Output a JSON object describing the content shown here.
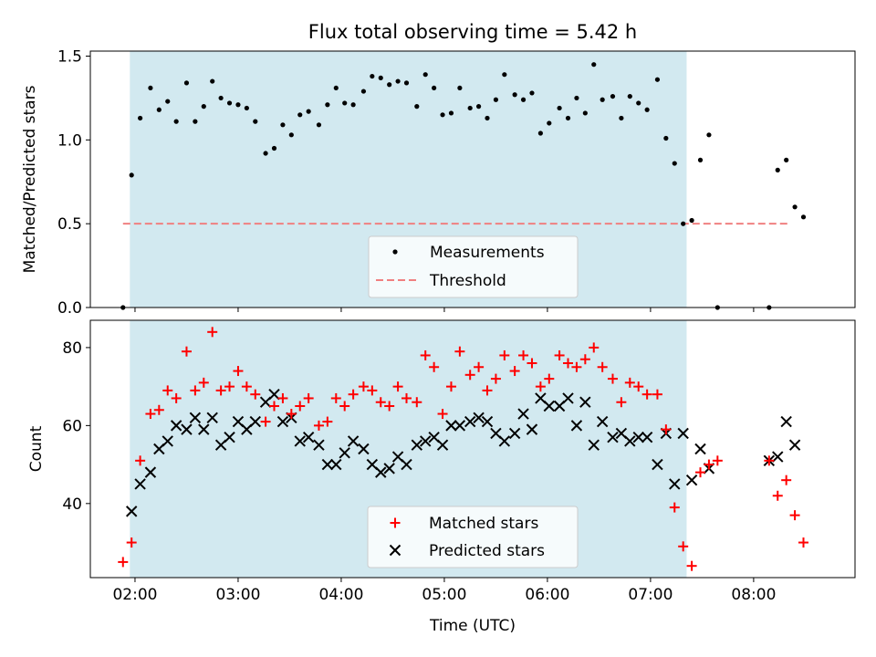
{
  "chart_data": [
    {
      "type": "scatter",
      "title": "Flux total observing time = 5.42 h",
      "xlabel": "",
      "ylabel": "Matched/Predicted stars",
      "xlim": [
        "01:34",
        "08:59"
      ],
      "ylim": [
        0,
        1.53
      ],
      "x_ticks": [
        "02:00",
        "03:00",
        "04:00",
        "05:00",
        "06:00",
        "07:00",
        "08:00"
      ],
      "y_ticks": [
        "0.0",
        "0.5",
        "1.0",
        "1.5"
      ],
      "observing_window": {
        "start": "01:57",
        "end": "07:21",
        "color": "#d2e9f0"
      },
      "threshold": {
        "name": "Threshold",
        "value": 0.5,
        "x_range": [
          "01:53",
          "08:20"
        ],
        "color": "#f08080"
      },
      "legend_position": "lower-center",
      "series": [
        {
          "name": "Measurements",
          "color": "#000000",
          "marker": "dot",
          "points": [
            [
              "01:53",
              0.0
            ],
            [
              "01:58",
              0.79
            ],
            [
              "02:03",
              1.13
            ],
            [
              "02:09",
              1.31
            ],
            [
              "02:14",
              1.18
            ],
            [
              "02:19",
              1.23
            ],
            [
              "02:24",
              1.11
            ],
            [
              "02:30",
              1.34
            ],
            [
              "02:35",
              1.11
            ],
            [
              "02:40",
              1.2
            ],
            [
              "02:45",
              1.35
            ],
            [
              "02:50",
              1.25
            ],
            [
              "02:55",
              1.22
            ],
            [
              "03:00",
              1.21
            ],
            [
              "03:05",
              1.19
            ],
            [
              "03:10",
              1.11
            ],
            [
              "03:16",
              0.92
            ],
            [
              "03:21",
              0.95
            ],
            [
              "03:26",
              1.09
            ],
            [
              "03:31",
              1.03
            ],
            [
              "03:36",
              1.15
            ],
            [
              "03:41",
              1.17
            ],
            [
              "03:47",
              1.09
            ],
            [
              "03:52",
              1.21
            ],
            [
              "03:57",
              1.31
            ],
            [
              "04:02",
              1.22
            ],
            [
              "04:07",
              1.21
            ],
            [
              "04:13",
              1.29
            ],
            [
              "04:18",
              1.38
            ],
            [
              "04:23",
              1.37
            ],
            [
              "04:28",
              1.33
            ],
            [
              "04:33",
              1.35
            ],
            [
              "04:38",
              1.34
            ],
            [
              "04:44",
              1.2
            ],
            [
              "04:49",
              1.39
            ],
            [
              "04:54",
              1.31
            ],
            [
              "04:59",
              1.15
            ],
            [
              "05:04",
              1.16
            ],
            [
              "05:09",
              1.31
            ],
            [
              "05:15",
              1.19
            ],
            [
              "05:20",
              1.2
            ],
            [
              "05:25",
              1.13
            ],
            [
              "05:30",
              1.24
            ],
            [
              "05:35",
              1.39
            ],
            [
              "05:41",
              1.27
            ],
            [
              "05:46",
              1.24
            ],
            [
              "05:51",
              1.28
            ],
            [
              "05:56",
              1.04
            ],
            [
              "06:01",
              1.1
            ],
            [
              "06:07",
              1.19
            ],
            [
              "06:12",
              1.13
            ],
            [
              "06:17",
              1.25
            ],
            [
              "06:22",
              1.16
            ],
            [
              "06:27",
              1.45
            ],
            [
              "06:32",
              1.24
            ],
            [
              "06:38",
              1.26
            ],
            [
              "06:43",
              1.13
            ],
            [
              "06:48",
              1.26
            ],
            [
              "06:53",
              1.22
            ],
            [
              "06:58",
              1.18
            ],
            [
              "07:04",
              1.36
            ],
            [
              "07:09",
              1.01
            ],
            [
              "07:14",
              0.86
            ],
            [
              "07:19",
              0.5
            ],
            [
              "07:24",
              0.52
            ],
            [
              "07:29",
              0.88
            ],
            [
              "07:34",
              1.03
            ],
            [
              "07:39",
              0.0
            ],
            [
              "08:09",
              0.0
            ],
            [
              "08:14",
              0.82
            ],
            [
              "08:19",
              0.88
            ],
            [
              "08:24",
              0.6
            ],
            [
              "08:29",
              0.54
            ]
          ]
        }
      ]
    },
    {
      "type": "scatter",
      "title": "",
      "xlabel": "Time (UTC)",
      "ylabel": "Count",
      "xlim": [
        "01:34",
        "08:59"
      ],
      "ylim": [
        21,
        87
      ],
      "x_ticks": [
        "02:00",
        "03:00",
        "04:00",
        "05:00",
        "06:00",
        "07:00",
        "08:00"
      ],
      "y_ticks": [
        "40",
        "60",
        "80"
      ],
      "observing_window": {
        "start": "01:57",
        "end": "07:21",
        "color": "#d2e9f0"
      },
      "legend_position": "lower-center",
      "x": [
        "01:53",
        "01:58",
        "02:03",
        "02:09",
        "02:14",
        "02:19",
        "02:24",
        "02:30",
        "02:35",
        "02:40",
        "02:45",
        "02:50",
        "02:55",
        "03:00",
        "03:05",
        "03:10",
        "03:16",
        "03:21",
        "03:26",
        "03:31",
        "03:36",
        "03:41",
        "03:47",
        "03:52",
        "03:57",
        "04:02",
        "04:07",
        "04:13",
        "04:18",
        "04:23",
        "04:28",
        "04:33",
        "04:38",
        "04:44",
        "04:49",
        "04:54",
        "04:59",
        "05:04",
        "05:09",
        "05:15",
        "05:20",
        "05:25",
        "05:30",
        "05:35",
        "05:41",
        "05:46",
        "05:51",
        "05:56",
        "06:01",
        "06:07",
        "06:12",
        "06:17",
        "06:22",
        "06:27",
        "06:32",
        "06:38",
        "06:43",
        "06:48",
        "06:53",
        "06:58",
        "07:04",
        "07:09",
        "07:14",
        "07:19",
        "07:24",
        "07:29",
        "07:34",
        "07:39",
        "08:09",
        "08:14",
        "08:19",
        "08:24",
        "08:29"
      ],
      "series": [
        {
          "name": "Matched stars",
          "color": "#ff0000",
          "marker": "plus",
          "values": [
            25,
            30,
            51,
            63,
            64,
            69,
            67,
            79,
            69,
            71,
            84,
            69,
            70,
            74,
            70,
            68,
            61,
            65,
            67,
            63,
            65,
            67,
            60,
            61,
            67,
            65,
            68,
            70,
            69,
            66,
            65,
            70,
            67,
            66,
            78,
            75,
            63,
            70,
            79,
            73,
            75,
            69,
            72,
            78,
            74,
            78,
            76,
            70,
            72,
            78,
            76,
            75,
            77,
            80,
            75,
            72,
            66,
            71,
            70,
            68,
            68,
            59,
            39,
            29,
            24,
            48,
            50,
            51,
            51,
            42,
            46,
            37,
            30
          ]
        },
        {
          "name": "Predicted stars",
          "color": "#000000",
          "marker": "x",
          "values": [
            null,
            38,
            45,
            48,
            54,
            56,
            60,
            59,
            62,
            59,
            62,
            55,
            57,
            61,
            59,
            61,
            66,
            68,
            61,
            62,
            56,
            57,
            55,
            50,
            50,
            53,
            56,
            54,
            50,
            48,
            49,
            52,
            50,
            55,
            56,
            57,
            55,
            60,
            60,
            61,
            62,
            61,
            58,
            56,
            58,
            63,
            59,
            67,
            65,
            65,
            67,
            60,
            66,
            55,
            61,
            57,
            58,
            56,
            57,
            57,
            50,
            58,
            45,
            58,
            46,
            54,
            49,
            null,
            51,
            52,
            61,
            55,
            null
          ]
        }
      ]
    }
  ]
}
